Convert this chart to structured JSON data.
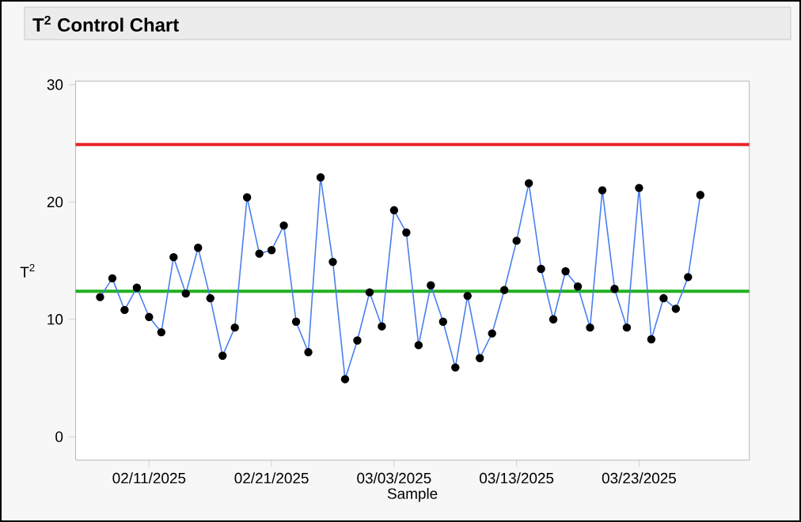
{
  "chart_data": {
    "type": "line",
    "title": "T$^{2}$ Control Chart",
    "xlabel": "Sample",
    "ylabel": "T$^{2}$",
    "x": [
      "2025-02-07",
      "2025-02-08",
      "2025-02-09",
      "2025-02-10",
      "2025-02-11",
      "2025-02-12",
      "2025-02-13",
      "2025-02-14",
      "2025-02-15",
      "2025-02-16",
      "2025-02-17",
      "2025-02-18",
      "2025-02-19",
      "2025-02-20",
      "2025-02-21",
      "2025-02-22",
      "2025-02-23",
      "2025-02-24",
      "2025-02-25",
      "2025-02-26",
      "2025-02-27",
      "2025-02-28",
      "2025-03-01",
      "2025-03-02",
      "2025-03-03",
      "2025-03-04",
      "2025-03-05",
      "2025-03-06",
      "2025-03-07",
      "2025-03-08",
      "2025-03-09",
      "2025-03-10",
      "2025-03-11",
      "2025-03-12",
      "2025-03-13",
      "2025-03-14",
      "2025-03-15",
      "2025-03-16",
      "2025-03-17",
      "2025-03-18",
      "2025-03-19",
      "2025-03-20",
      "2025-03-21",
      "2025-03-22",
      "2025-03-23",
      "2025-03-24",
      "2025-03-25",
      "2025-03-26",
      "2025-03-27",
      "2025-03-28"
    ],
    "series": [
      {
        "color": "#4a7ff0",
        "values": [
          11.9,
          13.5,
          10.8,
          12.7,
          10.2,
          8.9,
          15.3,
          12.2,
          16.1,
          11.8,
          6.9,
          9.3,
          20.4,
          15.6,
          15.9,
          18.0,
          9.8,
          7.2,
          22.1,
          14.9,
          4.9,
          8.2,
          12.3,
          9.4,
          19.3,
          17.4,
          7.8,
          12.9,
          9.8,
          5.9,
          12.0,
          6.7,
          8.8,
          12.5,
          16.7,
          21.6,
          14.3,
          10.0,
          14.1,
          12.8,
          9.3,
          21.0,
          12.6,
          9.3,
          21.2,
          8.3,
          11.8,
          10.9,
          13.6,
          20.6
        ]
      }
    ],
    "marker": "circle",
    "line_style": "solid",
    "grid": false,
    "xlim": [
      "2025-02-05",
      "2025-04-01"
    ],
    "xticks": [
      {
        "value": "2025-02-11",
        "label": "02/11/2025"
      },
      {
        "value": "2025-02-21",
        "label": "02/21/2025"
      },
      {
        "value": "2025-03-03",
        "label": "03/03/2025"
      },
      {
        "value": "2025-03-13",
        "label": "03/13/2025"
      },
      {
        "value": "2025-03-23",
        "label": "03/23/2025"
      }
    ],
    "ylim": [
      -2,
      30.3
    ],
    "yticks": [
      0,
      10,
      20,
      30
    ],
    "ref_lines": [
      {
        "axis": "y",
        "value": 24.9,
        "color": "#e8242c"
      },
      {
        "axis": "y",
        "value": 12.4,
        "color": "#20b020"
      }
    ]
  }
}
